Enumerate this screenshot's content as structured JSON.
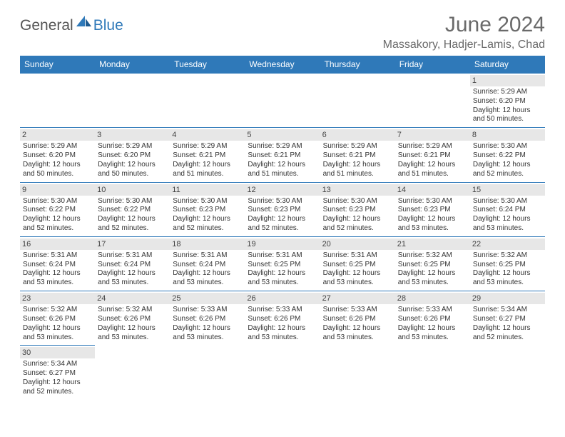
{
  "brand": {
    "part1": "General",
    "part2": "Blue"
  },
  "title": "June 2024",
  "location": "Massakory, Hadjer-Lamis, Chad",
  "colors": {
    "accent": "#2f79b9",
    "header_text": "#6a6a6a",
    "daynum_bg": "#e7e7e7",
    "text": "#333333",
    "background": "#ffffff"
  },
  "day_headers": [
    "Sunday",
    "Monday",
    "Tuesday",
    "Wednesday",
    "Thursday",
    "Friday",
    "Saturday"
  ],
  "weeks": [
    [
      null,
      null,
      null,
      null,
      null,
      null,
      {
        "n": "1",
        "sunrise": "5:29 AM",
        "sunset": "6:20 PM",
        "daylight": "12 hours and 50 minutes."
      }
    ],
    [
      {
        "n": "2",
        "sunrise": "5:29 AM",
        "sunset": "6:20 PM",
        "daylight": "12 hours and 50 minutes."
      },
      {
        "n": "3",
        "sunrise": "5:29 AM",
        "sunset": "6:20 PM",
        "daylight": "12 hours and 50 minutes."
      },
      {
        "n": "4",
        "sunrise": "5:29 AM",
        "sunset": "6:21 PM",
        "daylight": "12 hours and 51 minutes."
      },
      {
        "n": "5",
        "sunrise": "5:29 AM",
        "sunset": "6:21 PM",
        "daylight": "12 hours and 51 minutes."
      },
      {
        "n": "6",
        "sunrise": "5:29 AM",
        "sunset": "6:21 PM",
        "daylight": "12 hours and 51 minutes."
      },
      {
        "n": "7",
        "sunrise": "5:29 AM",
        "sunset": "6:21 PM",
        "daylight": "12 hours and 51 minutes."
      },
      {
        "n": "8",
        "sunrise": "5:30 AM",
        "sunset": "6:22 PM",
        "daylight": "12 hours and 52 minutes."
      }
    ],
    [
      {
        "n": "9",
        "sunrise": "5:30 AM",
        "sunset": "6:22 PM",
        "daylight": "12 hours and 52 minutes."
      },
      {
        "n": "10",
        "sunrise": "5:30 AM",
        "sunset": "6:22 PM",
        "daylight": "12 hours and 52 minutes."
      },
      {
        "n": "11",
        "sunrise": "5:30 AM",
        "sunset": "6:23 PM",
        "daylight": "12 hours and 52 minutes."
      },
      {
        "n": "12",
        "sunrise": "5:30 AM",
        "sunset": "6:23 PM",
        "daylight": "12 hours and 52 minutes."
      },
      {
        "n": "13",
        "sunrise": "5:30 AM",
        "sunset": "6:23 PM",
        "daylight": "12 hours and 52 minutes."
      },
      {
        "n": "14",
        "sunrise": "5:30 AM",
        "sunset": "6:23 PM",
        "daylight": "12 hours and 53 minutes."
      },
      {
        "n": "15",
        "sunrise": "5:30 AM",
        "sunset": "6:24 PM",
        "daylight": "12 hours and 53 minutes."
      }
    ],
    [
      {
        "n": "16",
        "sunrise": "5:31 AM",
        "sunset": "6:24 PM",
        "daylight": "12 hours and 53 minutes."
      },
      {
        "n": "17",
        "sunrise": "5:31 AM",
        "sunset": "6:24 PM",
        "daylight": "12 hours and 53 minutes."
      },
      {
        "n": "18",
        "sunrise": "5:31 AM",
        "sunset": "6:24 PM",
        "daylight": "12 hours and 53 minutes."
      },
      {
        "n": "19",
        "sunrise": "5:31 AM",
        "sunset": "6:25 PM",
        "daylight": "12 hours and 53 minutes."
      },
      {
        "n": "20",
        "sunrise": "5:31 AM",
        "sunset": "6:25 PM",
        "daylight": "12 hours and 53 minutes."
      },
      {
        "n": "21",
        "sunrise": "5:32 AM",
        "sunset": "6:25 PM",
        "daylight": "12 hours and 53 minutes."
      },
      {
        "n": "22",
        "sunrise": "5:32 AM",
        "sunset": "6:25 PM",
        "daylight": "12 hours and 53 minutes."
      }
    ],
    [
      {
        "n": "23",
        "sunrise": "5:32 AM",
        "sunset": "6:26 PM",
        "daylight": "12 hours and 53 minutes."
      },
      {
        "n": "24",
        "sunrise": "5:32 AM",
        "sunset": "6:26 PM",
        "daylight": "12 hours and 53 minutes."
      },
      {
        "n": "25",
        "sunrise": "5:33 AM",
        "sunset": "6:26 PM",
        "daylight": "12 hours and 53 minutes."
      },
      {
        "n": "26",
        "sunrise": "5:33 AM",
        "sunset": "6:26 PM",
        "daylight": "12 hours and 53 minutes."
      },
      {
        "n": "27",
        "sunrise": "5:33 AM",
        "sunset": "6:26 PM",
        "daylight": "12 hours and 53 minutes."
      },
      {
        "n": "28",
        "sunrise": "5:33 AM",
        "sunset": "6:26 PM",
        "daylight": "12 hours and 53 minutes."
      },
      {
        "n": "29",
        "sunrise": "5:34 AM",
        "sunset": "6:27 PM",
        "daylight": "12 hours and 52 minutes."
      }
    ],
    [
      {
        "n": "30",
        "sunrise": "5:34 AM",
        "sunset": "6:27 PM",
        "daylight": "12 hours and 52 minutes."
      },
      null,
      null,
      null,
      null,
      null,
      null
    ]
  ],
  "labels": {
    "sunrise": "Sunrise:",
    "sunset": "Sunset:",
    "daylight": "Daylight:"
  }
}
